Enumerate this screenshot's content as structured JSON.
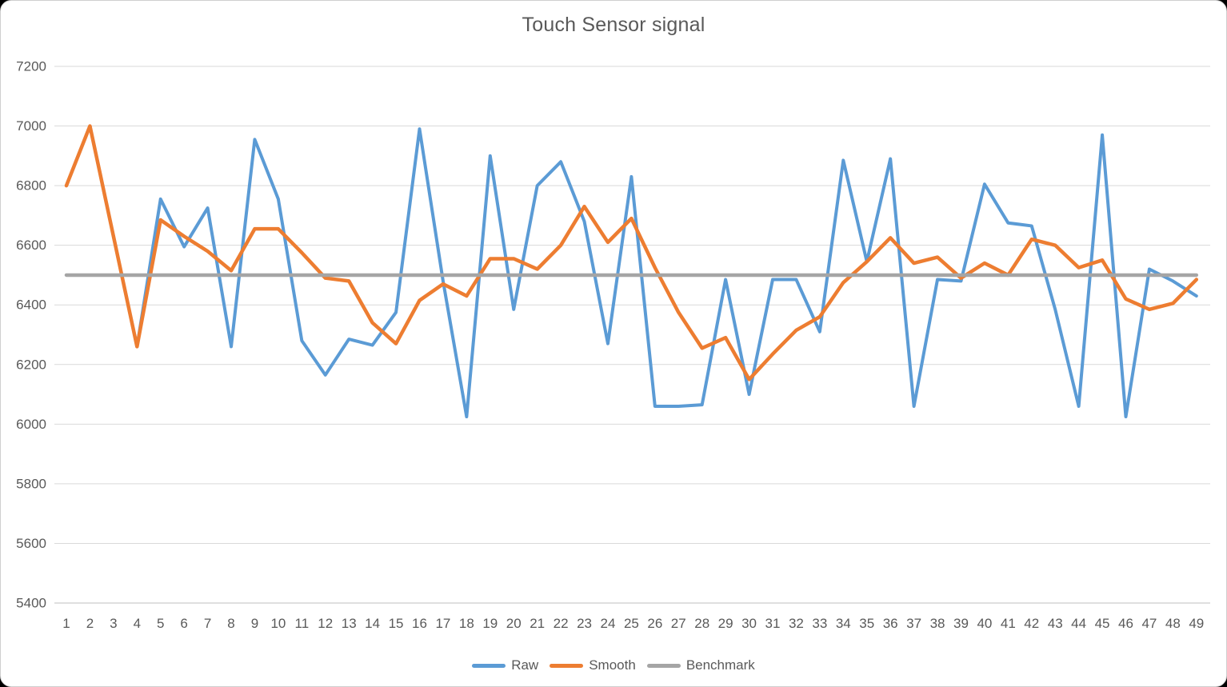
{
  "chart_data": {
    "type": "line",
    "title": "Touch Sensor signal",
    "xlabel": "",
    "ylabel": "",
    "ylim": [
      5400,
      7200
    ],
    "ytick_step": 200,
    "grid": true,
    "legend_position": "bottom",
    "categories": [
      1,
      2,
      3,
      4,
      5,
      6,
      7,
      8,
      9,
      10,
      11,
      12,
      13,
      14,
      15,
      16,
      17,
      18,
      19,
      20,
      21,
      22,
      23,
      24,
      25,
      26,
      27,
      28,
      29,
      30,
      31,
      32,
      33,
      34,
      35,
      36,
      37,
      38,
      39,
      40,
      41,
      42,
      43,
      44,
      45,
      46,
      47,
      48,
      49
    ],
    "series": [
      {
        "name": "Raw",
        "color": "#5B9BD5",
        "stroke_width": 4,
        "values": [
          6800,
          7000,
          6630,
          6260,
          6755,
          6595,
          6725,
          6260,
          6955,
          6755,
          6280,
          6165,
          6285,
          6265,
          6375,
          6990,
          6480,
          6025,
          6900,
          6385,
          6800,
          6880,
          6680,
          6270,
          6830,
          6060,
          6060,
          6065,
          6485,
          6100,
          6485,
          6485,
          6310,
          6885,
          6545,
          6890,
          6060,
          6485,
          6480,
          6805,
          6675,
          6665,
          6385,
          6060,
          6970,
          6025,
          6520,
          6480,
          6430
        ]
      },
      {
        "name": "Smooth",
        "color": "#ED7D31",
        "stroke_width": 4.5,
        "values": [
          6800,
          7000,
          6630,
          6260,
          6685,
          6630,
          6580,
          6515,
          6655,
          6655,
          6575,
          6490,
          6480,
          6340,
          6270,
          6415,
          6470,
          6430,
          6555,
          6555,
          6520,
          6600,
          6730,
          6610,
          6690,
          6525,
          6375,
          6255,
          6290,
          6150,
          6235,
          6315,
          6360,
          6475,
          6545,
          6625,
          6540,
          6560,
          6490,
          6540,
          6500,
          6620,
          6600,
          6525,
          6550,
          6420,
          6385,
          6405,
          6485
        ]
      },
      {
        "name": "Benchmark",
        "color": "#A5A5A5",
        "stroke_width": 4.5,
        "constant": 6500
      }
    ]
  },
  "styles": {
    "gridline_color": "#D9D9D9",
    "axis_line_color": "#BFBFBF",
    "tick_label_color": "#595959",
    "title_color": "#595959"
  }
}
